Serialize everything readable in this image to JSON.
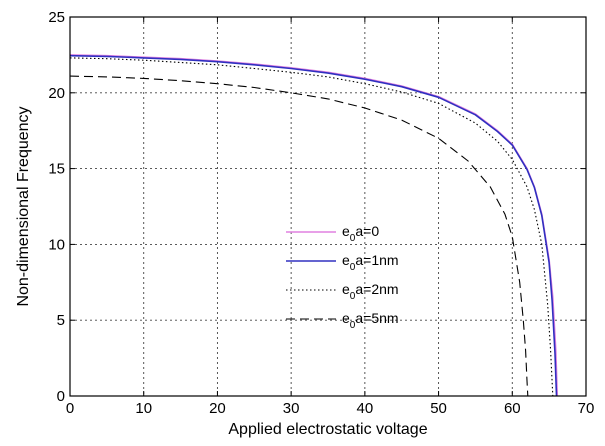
{
  "chart_data": {
    "type": "line",
    "xlabel": "Applied electrostatic voltage",
    "ylabel": "Non-dimensional Frequency",
    "xlim": [
      0,
      70
    ],
    "ylim": [
      0,
      25
    ],
    "xticks": [
      0,
      10,
      20,
      30,
      40,
      50,
      60,
      70
    ],
    "yticks": [
      0,
      5,
      10,
      15,
      20,
      25
    ],
    "grid": true,
    "legend_position": "center-right",
    "series": [
      {
        "name": "e0a=0",
        "label_base": "e",
        "label_sub": "0",
        "label_rest": "a=0",
        "color": "#e080e0",
        "style": "solid",
        "x": [
          0,
          5,
          10,
          15,
          20,
          25,
          30,
          35,
          40,
          45,
          50,
          55,
          58,
          60,
          62,
          63,
          64,
          65,
          65.5,
          65.9,
          66.1
        ],
        "y": [
          22.5,
          22.45,
          22.35,
          22.25,
          22.1,
          21.9,
          21.65,
          21.35,
          20.95,
          20.45,
          19.75,
          18.6,
          17.5,
          16.6,
          15.0,
          13.8,
          12.0,
          9.0,
          6.5,
          3.0,
          0
        ]
      },
      {
        "name": "e0a=1nm",
        "label_base": "e",
        "label_sub": "0",
        "label_rest": "a=1nm",
        "color": "#3030c0",
        "style": "solid",
        "x": [
          0,
          5,
          10,
          15,
          20,
          25,
          30,
          35,
          40,
          45,
          50,
          55,
          58,
          60,
          62,
          63,
          64,
          65,
          65.4,
          65.8,
          66.0
        ],
        "y": [
          22.45,
          22.4,
          22.3,
          22.2,
          22.05,
          21.85,
          21.6,
          21.3,
          20.9,
          20.4,
          19.7,
          18.55,
          17.45,
          16.55,
          14.95,
          13.75,
          11.9,
          8.8,
          6.3,
          2.8,
          0
        ]
      },
      {
        "name": "e0a=2nm",
        "label_base": "e",
        "label_sub": "0",
        "label_rest": "a=2nm",
        "color": "#000000",
        "style": "dotted",
        "x": [
          0,
          5,
          10,
          15,
          20,
          25,
          30,
          35,
          40,
          45,
          50,
          55,
          58,
          60,
          62,
          63,
          64,
          64.8,
          65.2,
          65.5
        ],
        "y": [
          22.3,
          22.25,
          22.15,
          22.0,
          21.85,
          21.6,
          21.35,
          21.05,
          20.6,
          20.05,
          19.3,
          18.0,
          16.8,
          15.6,
          13.8,
          12.3,
          10.0,
          6.0,
          3.0,
          0
        ]
      },
      {
        "name": "e0a=5nm",
        "label_base": "e",
        "label_sub": "0",
        "label_rest": "a=5nm",
        "color": "#000000",
        "style": "dashed",
        "x": [
          0,
          5,
          10,
          15,
          20,
          25,
          30,
          35,
          40,
          45,
          50,
          54,
          57,
          59,
          60,
          61,
          61.5,
          61.8,
          62.0,
          62.1
        ],
        "y": [
          21.1,
          21.05,
          20.95,
          20.8,
          20.6,
          20.35,
          20.0,
          19.6,
          19.0,
          18.2,
          17.0,
          15.5,
          13.8,
          12.0,
          10.5,
          7.5,
          5.0,
          3.0,
          1.0,
          0
        ]
      }
    ]
  }
}
